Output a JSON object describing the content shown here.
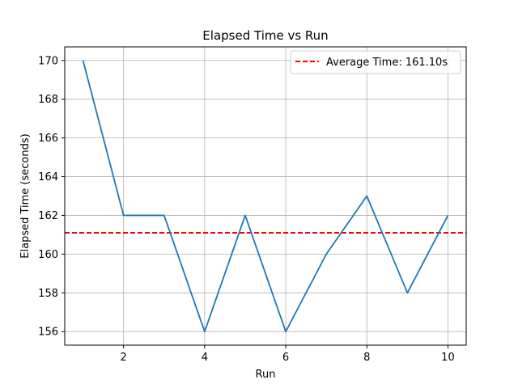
{
  "chart_data": {
    "type": "line",
    "title": "Elapsed Time vs Run",
    "xlabel": "Run",
    "ylabel": "Elapsed Time (seconds)",
    "xlim": [
      0.55,
      10.45
    ],
    "ylim": [
      155.3,
      170.7
    ],
    "xticks": [
      2,
      4,
      6,
      8,
      10
    ],
    "yticks": [
      156,
      158,
      160,
      162,
      164,
      166,
      168,
      170
    ],
    "grid": true,
    "legend_position": "top-right",
    "series": [
      {
        "name": "Elapsed Time",
        "color": "#1f77b4",
        "x": [
          1,
          2,
          3,
          4,
          5,
          6,
          7,
          8,
          9,
          10
        ],
        "y": [
          170,
          162,
          162,
          156,
          162,
          156,
          160,
          163,
          158,
          162
        ]
      }
    ],
    "reference_lines": [
      {
        "label": "Average Time: 161.10s",
        "value": 161.1,
        "color": "#ff0000",
        "style": "dashed"
      }
    ]
  }
}
